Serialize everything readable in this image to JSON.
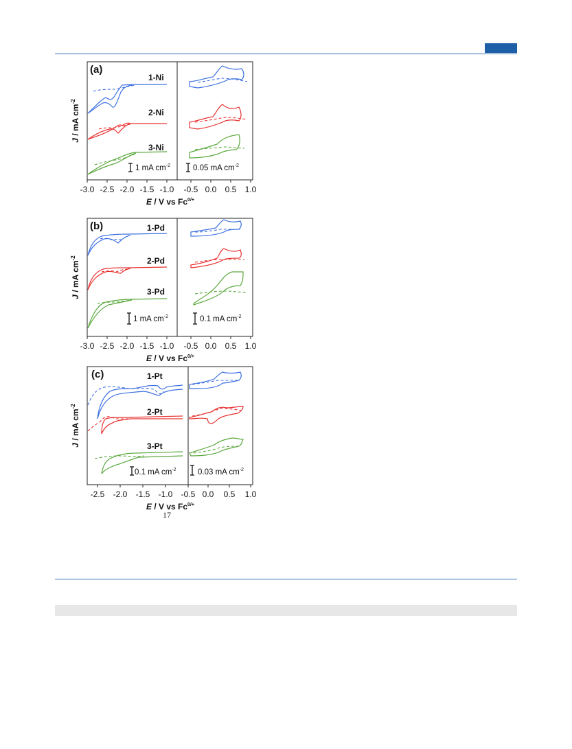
{
  "header": {
    "accent_color": "#1f5fa8"
  },
  "figure": {
    "y_axis_label": "J / mA cm",
    "y_axis_sup": "-2",
    "x_axis_label": "E / V vs Fc",
    "x_axis_sup": "0/+",
    "panels": [
      {
        "label": "(a)",
        "left_ticks": [
          "-3.0",
          "-2.5",
          "-2.0",
          "-1.5",
          "-1.0"
        ],
        "right_ticks": [
          "-0.5",
          "0.0",
          "0.5",
          "1.0"
        ],
        "curves": [
          "1-Ni",
          "2-Ni",
          "3-Ni"
        ],
        "left_scale": "1 mA cm",
        "right_scale": "0.05 mA cm"
      },
      {
        "label": "(b)",
        "left_ticks": [
          "-3.0",
          "-2.5",
          "-2.0",
          "-1.5",
          "-1.0"
        ],
        "right_ticks": [
          "-0.5",
          "0.0",
          "0.5",
          "1.0"
        ],
        "curves": [
          "1-Pd",
          "2-Pd",
          "3-Pd"
        ],
        "left_scale": "1 mA cm",
        "right_scale": "0.1 mA cm"
      },
      {
        "label": "(c)",
        "left_ticks": [
          "-2.5",
          "-2.0",
          "-1.5",
          "-1.0",
          "-0.5"
        ],
        "right_ticks": [
          "0.0",
          "0.5",
          "1.0"
        ],
        "curves": [
          "1-Pt",
          "2-Pt",
          "3-Pt"
        ],
        "left_scale": "0.1 mA cm",
        "right_scale": "0.03 mA cm"
      }
    ],
    "scale_sup": "-2",
    "colors": {
      "1": "#3b6fe0",
      "2": "#e8302f",
      "3": "#5aa83c"
    }
  },
  "page_number": "17"
}
